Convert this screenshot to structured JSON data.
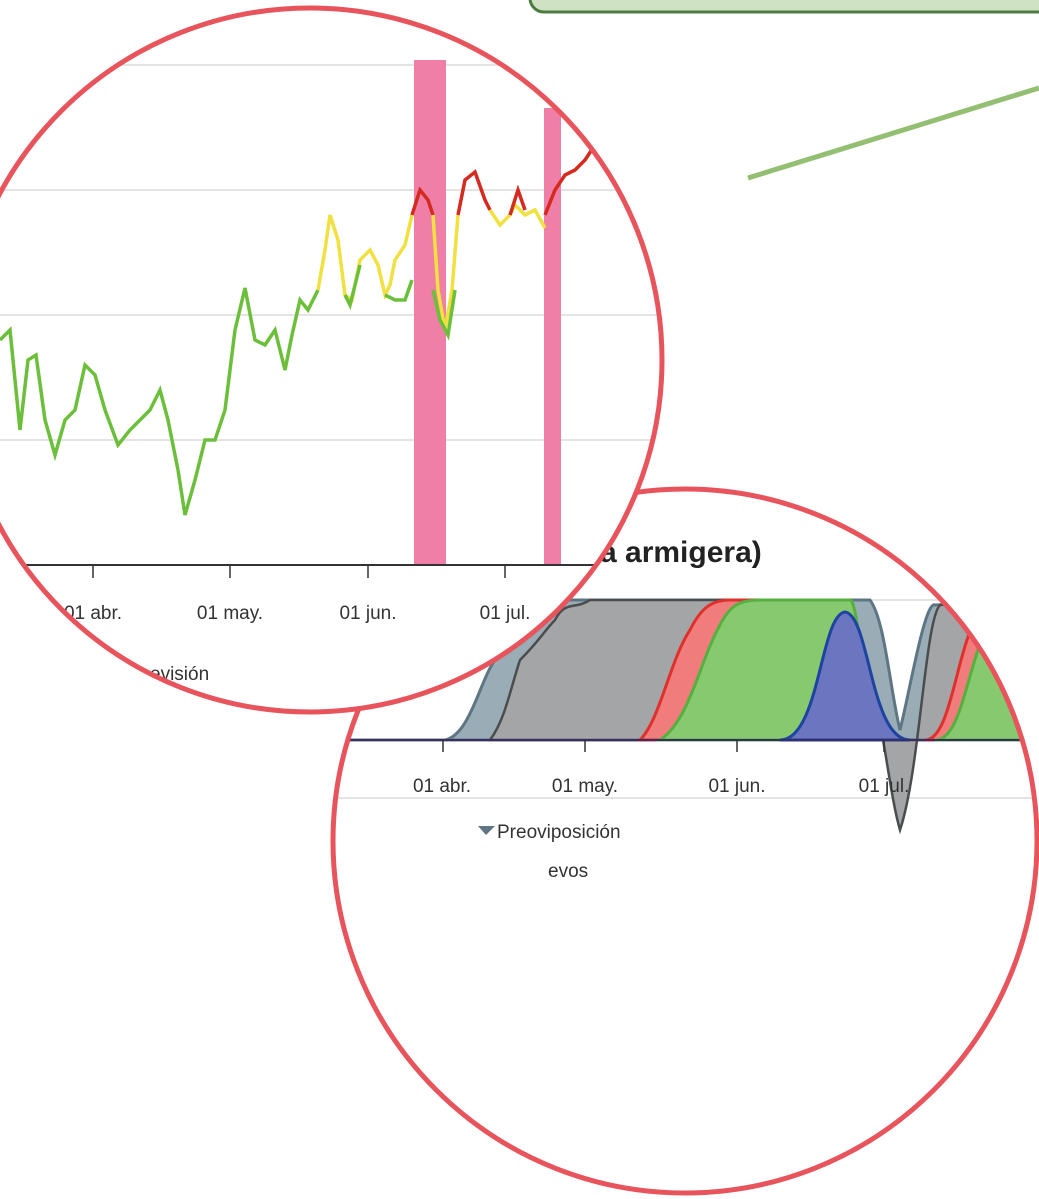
{
  "top_zoom": {
    "x_labels": [
      "01 abr.",
      "01 may.",
      "01 jun.",
      "01 jul."
    ],
    "legend": "evisión"
  },
  "bottom_zoom": {
    "title": "a armigera)",
    "x_labels": [
      "01 abr.",
      "01 may.",
      "01 jun.",
      "01 jul."
    ],
    "legend": [
      "Preoviposición",
      "evos"
    ]
  }
}
